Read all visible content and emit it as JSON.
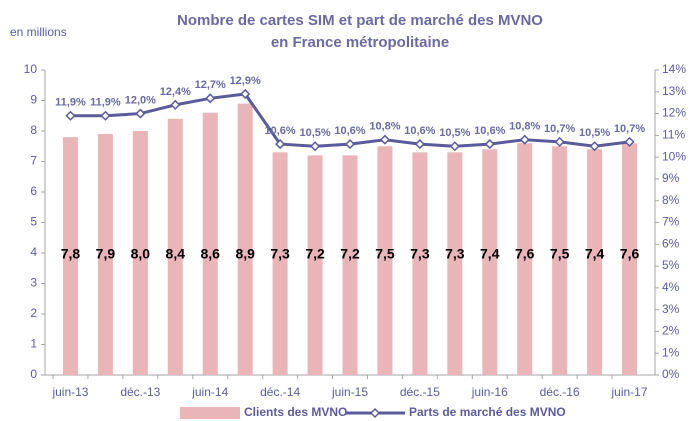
{
  "chart_data": {
    "type": "bar_line",
    "title": [
      "Nombre de cartes SIM et part de marché des MVNO",
      "en France métropolitaine"
    ],
    "y_axis_label": "en millions",
    "categories": [
      "juin-13",
      null,
      "déc.-13",
      null,
      "juin-14",
      null,
      "déc.-14",
      null,
      "juin-15",
      null,
      "déc.-15",
      null,
      "juin-16",
      null,
      "déc.-16",
      null,
      "juin-17"
    ],
    "series": [
      {
        "name": "Clients des MVNO",
        "type": "bar",
        "color": "#e9b5b9",
        "values": [
          7.8,
          7.9,
          8.0,
          8.4,
          8.6,
          8.9,
          7.3,
          7.2,
          7.2,
          7.5,
          7.3,
          7.3,
          7.4,
          7.6,
          7.5,
          7.4,
          7.6
        ],
        "value_labels": [
          "7,8",
          "7,9",
          "8,0",
          "8,4",
          "8,6",
          "8,9",
          "7,3",
          "7,2",
          "7,2",
          "7,5",
          "7,3",
          "7,3",
          "7,4",
          "7,6",
          "7,5",
          "7,4",
          "7,6"
        ]
      },
      {
        "name": "Parts de marché des MVNO",
        "type": "line",
        "axis": "y2",
        "color": "#5b5b9c",
        "values": [
          11.9,
          11.9,
          12.0,
          12.4,
          12.7,
          12.9,
          10.6,
          10.5,
          10.6,
          10.8,
          10.6,
          10.5,
          10.6,
          10.8,
          10.7,
          10.5,
          10.7
        ],
        "value_labels": [
          "11,9%",
          "11,9%",
          "12,0%",
          "12,4%",
          "12,7%",
          "12,9%",
          "10,6%",
          "10,5%",
          "10,6%",
          "10,8%",
          "10,6%",
          "10,5%",
          "10,6%",
          "10,8%",
          "10,7%",
          "10,5%",
          "10,7%"
        ]
      }
    ],
    "ylim": [
      0,
      10
    ],
    "yticks": [
      0,
      1,
      2,
      3,
      4,
      5,
      6,
      7,
      8,
      9,
      10
    ],
    "y2lim": [
      0,
      14
    ],
    "y2ticks": [
      {
        "value": 0,
        "label": "0%"
      },
      {
        "value": 1,
        "label": "1%"
      },
      {
        "value": 2,
        "label": "2%"
      },
      {
        "value": 3,
        "label": "3%"
      },
      {
        "value": 4,
        "label": "4%"
      },
      {
        "value": 5,
        "label": "5%"
      },
      {
        "value": 6,
        "label": "6%"
      },
      {
        "value": 7,
        "label": "7%"
      },
      {
        "value": 8,
        "label": "8%"
      },
      {
        "value": 9,
        "label": "9%"
      },
      {
        "value": 10,
        "label": "10%"
      },
      {
        "value": 11,
        "label": "11%"
      },
      {
        "value": 12,
        "label": "12%"
      },
      {
        "value": 13,
        "label": "13%"
      },
      {
        "value": 14,
        "label": "14%"
      }
    ],
    "grid": false,
    "legend": "bottom"
  }
}
